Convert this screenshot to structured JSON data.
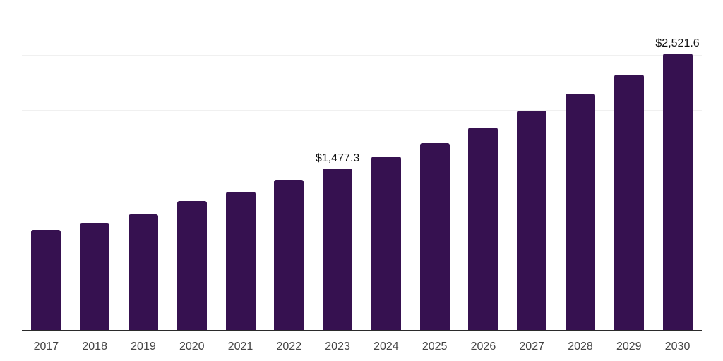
{
  "chart_data": {
    "type": "bar",
    "title": "",
    "xlabel": "",
    "ylabel": "",
    "categories": [
      "2017",
      "2018",
      "2019",
      "2020",
      "2021",
      "2022",
      "2023",
      "2024",
      "2025",
      "2026",
      "2027",
      "2028",
      "2029",
      "2030"
    ],
    "values": [
      921,
      983,
      1060,
      1185,
      1269,
      1373,
      1477.3,
      1585,
      1711,
      1851,
      2000,
      2156,
      2328,
      2521.6
    ],
    "data_labels": {
      "2023": "$1,477.3",
      "2030": "$2,521.6"
    },
    "ylim": [
      0,
      3000
    ],
    "gridline_step": 500,
    "grid": true,
    "legend": false,
    "colors": {
      "bar": "#361150",
      "gridline": "#f0f0f0",
      "axis_line": "#2b2b2b",
      "xtick_text": "#444444",
      "data_label_text": "#111111",
      "background": "#ffffff"
    }
  }
}
